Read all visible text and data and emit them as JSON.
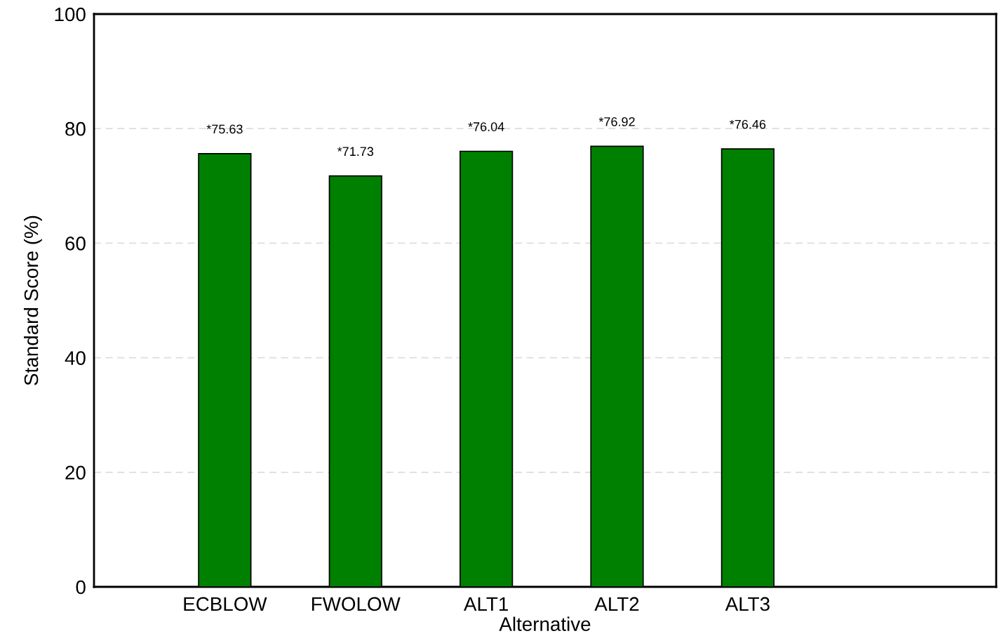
{
  "chart_data": {
    "type": "bar",
    "xlabel": "Alternative",
    "ylabel": "Standard Score (%)",
    "categories": [
      "ECBLOW",
      "FWOLOW",
      "ALT1",
      "ALT2",
      "ALT3"
    ],
    "values": [
      75.63,
      71.73,
      76.04,
      76.92,
      76.46
    ],
    "value_labels": [
      "*75.63",
      "*71.73",
      "*76.04",
      "*76.92",
      "*76.46"
    ],
    "color": "#008000",
    "ylim": [
      0,
      100
    ],
    "yticks": [
      0,
      20,
      40,
      60,
      80,
      100
    ],
    "grid": "y"
  }
}
